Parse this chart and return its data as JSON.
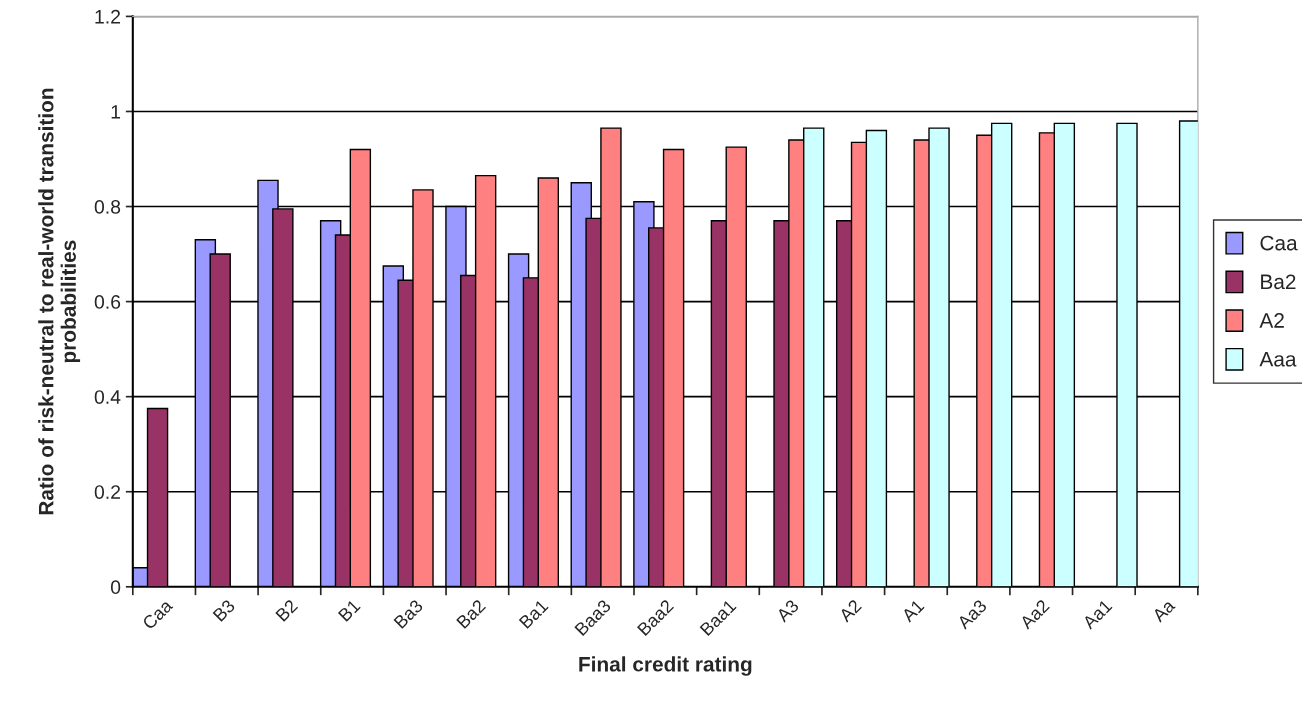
{
  "chart_data": {
    "type": "bar",
    "xlabel": "Final credit rating",
    "ylabel": "Ratio of risk-neutral to real-world transition\nprobabilities",
    "categories": [
      "Caa",
      "B3",
      "B2",
      "B1",
      "Ba3",
      "Ba2",
      "Ba1",
      "Baa3",
      "Baa2",
      "Baa1",
      "A3",
      "A2",
      "A1",
      "Aa3",
      "Aa2",
      "Aa1",
      "Aa"
    ],
    "series": [
      {
        "name": "Caa",
        "color": "#9999ff",
        "values": [
          0.04,
          0.73,
          0.855,
          0.77,
          0.675,
          0.8,
          0.7,
          0.85,
          0.81,
          null,
          null,
          null,
          null,
          null,
          null,
          null,
          null
        ]
      },
      {
        "name": "Ba2",
        "color": "#993366",
        "values": [
          0.375,
          0.7,
          0.795,
          0.74,
          0.645,
          0.655,
          0.65,
          0.775,
          0.755,
          0.77,
          0.77,
          0.77,
          null,
          null,
          null,
          null,
          null
        ]
      },
      {
        "name": "A2",
        "color": "#ff8080",
        "values": [
          null,
          null,
          null,
          0.92,
          0.835,
          0.865,
          0.86,
          0.965,
          0.92,
          0.925,
          0.94,
          0.935,
          0.94,
          0.95,
          0.955,
          null,
          null
        ]
      },
      {
        "name": "Aaa",
        "color": "#ccffff",
        "values": [
          null,
          null,
          null,
          null,
          null,
          null,
          null,
          null,
          null,
          null,
          0.965,
          0.96,
          0.965,
          0.975,
          0.975,
          0.975,
          0.98
        ]
      }
    ],
    "ylim": [
      0,
      1.2
    ],
    "yticks": [
      0,
      0.2,
      0.4,
      0.6,
      0.8,
      1,
      1.2
    ],
    "grid": "y",
    "legend": "right"
  }
}
